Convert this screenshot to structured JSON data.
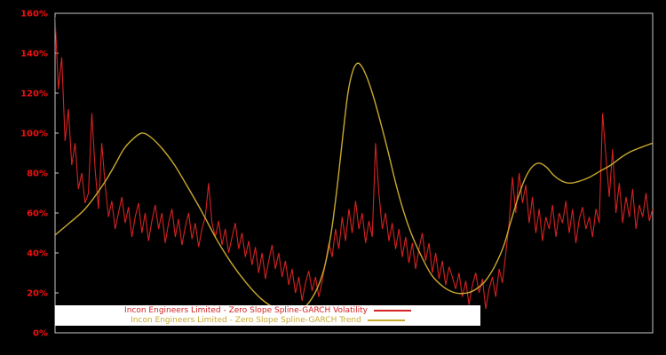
{
  "page": {
    "background_color": "#000000",
    "frame_color": "#c8c8c8"
  },
  "chart_data": {
    "type": "line",
    "title": "",
    "xlabel": "",
    "ylabel": "",
    "ylim": [
      0,
      160
    ],
    "grid": false,
    "legend_position": "bottom-center",
    "legend_background": "#ffffff",
    "y_axis_label_color": "#ee1111",
    "y_ticks": [
      {
        "value": 0,
        "label": "0%"
      },
      {
        "value": 20,
        "label": "20%"
      },
      {
        "value": 40,
        "label": "40%"
      },
      {
        "value": 60,
        "label": "60%"
      },
      {
        "value": 80,
        "label": "80%"
      },
      {
        "value": 100,
        "label": "100%"
      },
      {
        "value": 120,
        "label": "120%"
      },
      {
        "value": 140,
        "label": "140%"
      },
      {
        "value": 160,
        "label": "160%"
      }
    ],
    "series": [
      {
        "name": "Incon Engineers Limited - Zero Slope Spline-GARCH Volatility",
        "color": "#d42222",
        "style": "noisy",
        "x_range": [
          0,
          1
        ],
        "values": [
          158,
          122,
          138,
          96,
          112,
          84,
          95,
          72,
          80,
          65,
          70,
          110,
          82,
          62,
          95,
          74,
          58,
          66,
          52,
          60,
          68,
          55,
          63,
          48,
          58,
          65,
          50,
          60,
          46,
          56,
          64,
          52,
          60,
          45,
          55,
          62,
          48,
          57,
          44,
          53,
          60,
          47,
          55,
          43,
          52,
          58,
          75,
          55,
          48,
          56,
          44,
          52,
          40,
          48,
          55,
          42,
          50,
          38,
          46,
          34,
          43,
          30,
          40,
          27,
          36,
          44,
          32,
          40,
          28,
          36,
          24,
          32,
          20,
          28,
          16,
          25,
          31,
          21,
          28,
          18,
          26,
          35,
          45,
          38,
          52,
          42,
          58,
          46,
          62,
          50,
          66,
          52,
          60,
          45,
          56,
          48,
          95,
          70,
          52,
          60,
          46,
          55,
          42,
          52,
          38,
          48,
          35,
          45,
          32,
          42,
          50,
          36,
          45,
          30,
          40,
          27,
          36,
          24,
          33,
          28,
          22,
          30,
          18,
          26,
          14,
          24,
          30,
          20,
          27,
          12,
          22,
          28,
          18,
          32,
          25,
          40,
          55,
          78,
          60,
          80,
          65,
          74,
          55,
          68,
          50,
          62,
          46,
          58,
          52,
          64,
          48,
          60,
          55,
          66,
          50,
          62,
          45,
          57,
          63,
          52,
          58,
          48,
          62,
          55,
          110,
          88,
          68,
          92,
          60,
          75,
          55,
          68,
          58,
          72,
          52,
          64,
          58,
          70,
          56,
          62
        ]
      },
      {
        "name": "Incon Engineers Limited - Zero Slope Spline-GARCH Trend",
        "color": "#c9a92f",
        "style": "smooth",
        "points": [
          [
            0.0,
            49
          ],
          [
            0.02,
            54
          ],
          [
            0.05,
            62
          ],
          [
            0.08,
            74
          ],
          [
            0.1,
            84
          ],
          [
            0.115,
            92
          ],
          [
            0.13,
            97
          ],
          [
            0.145,
            100
          ],
          [
            0.16,
            98
          ],
          [
            0.18,
            92
          ],
          [
            0.2,
            84
          ],
          [
            0.22,
            74
          ],
          [
            0.245,
            61
          ],
          [
            0.27,
            47
          ],
          [
            0.295,
            35
          ],
          [
            0.32,
            25
          ],
          [
            0.345,
            17
          ],
          [
            0.37,
            12
          ],
          [
            0.395,
            10
          ],
          [
            0.415,
            12
          ],
          [
            0.435,
            20
          ],
          [
            0.45,
            32
          ],
          [
            0.462,
            50
          ],
          [
            0.472,
            73
          ],
          [
            0.482,
            100
          ],
          [
            0.49,
            120
          ],
          [
            0.498,
            131
          ],
          [
            0.506,
            135
          ],
          [
            0.514,
            133
          ],
          [
            0.523,
            127
          ],
          [
            0.533,
            118
          ],
          [
            0.545,
            105
          ],
          [
            0.557,
            91
          ],
          [
            0.57,
            75
          ],
          [
            0.583,
            61
          ],
          [
            0.597,
            49
          ],
          [
            0.612,
            39
          ],
          [
            0.63,
            29
          ],
          [
            0.65,
            23
          ],
          [
            0.67,
            20
          ],
          [
            0.69,
            20
          ],
          [
            0.705,
            22
          ],
          [
            0.72,
            26
          ],
          [
            0.735,
            33
          ],
          [
            0.75,
            43
          ],
          [
            0.762,
            55
          ],
          [
            0.774,
            67
          ],
          [
            0.786,
            77
          ],
          [
            0.798,
            83
          ],
          [
            0.81,
            85
          ],
          [
            0.822,
            83
          ],
          [
            0.834,
            79
          ],
          [
            0.848,
            76
          ],
          [
            0.862,
            75
          ],
          [
            0.878,
            76
          ],
          [
            0.895,
            78
          ],
          [
            0.912,
            81
          ],
          [
            0.93,
            84
          ],
          [
            0.948,
            88
          ],
          [
            0.965,
            91
          ],
          [
            0.982,
            93
          ],
          [
            1.0,
            95
          ]
        ]
      }
    ]
  }
}
